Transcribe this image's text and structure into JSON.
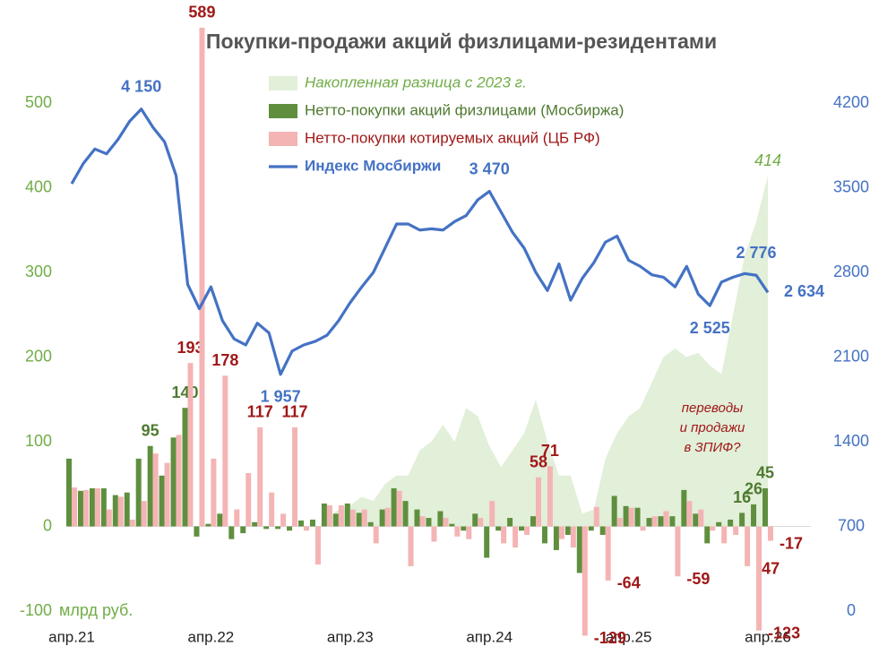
{
  "chart_data": {
    "type": "combo",
    "title": "Покупки-продажи акций физлицами-резидентами",
    "unit_label": "млрд руб.",
    "categories": [
      "апр.21",
      null,
      null,
      null,
      null,
      null,
      null,
      null,
      null,
      null,
      null,
      null,
      "апр.22",
      null,
      null,
      null,
      null,
      null,
      null,
      null,
      null,
      null,
      null,
      null,
      "апр.23",
      null,
      null,
      null,
      null,
      null,
      null,
      null,
      null,
      null,
      null,
      null,
      "апр.24",
      null,
      null,
      null,
      null,
      null,
      null,
      null,
      null,
      null,
      null,
      null,
      "апр.25",
      null,
      null,
      null,
      null,
      null,
      null,
      null,
      null,
      null,
      null,
      null,
      "апр.26"
    ],
    "ylim": [
      -100,
      500
    ],
    "yticks": [
      -100,
      0,
      100,
      200,
      300,
      400,
      500
    ],
    "ytick_color": "#70ad47",
    "y2lim": [
      0,
      4200
    ],
    "y2ticks": [
      0,
      700,
      1400,
      2100,
      2800,
      3500,
      4200
    ],
    "y2tick_color": "#4472c4",
    "series": [
      {
        "name": "Накопленная разница с 2023 г.",
        "type": "area",
        "color": "#e2efd9",
        "text_color": "#70ad47",
        "values": [
          null,
          null,
          null,
          null,
          null,
          null,
          null,
          null,
          null,
          null,
          null,
          null,
          null,
          null,
          null,
          null,
          null,
          null,
          null,
          null,
          null,
          -15,
          10,
          20,
          25,
          35,
          30,
          50,
          60,
          60,
          90,
          100,
          120,
          100,
          140,
          130,
          95,
          70,
          90,
          110,
          150,
          100,
          60,
          60,
          15,
          20,
          80,
          110,
          130,
          140,
          170,
          200,
          210,
          200,
          205,
          190,
          180,
          250,
          320,
          360,
          414
        ],
        "value_labels": [
          null,
          null,
          null,
          null,
          null,
          null,
          null,
          null,
          null,
          null,
          null,
          null,
          null,
          null,
          null,
          null,
          null,
          null,
          null,
          null,
          null,
          null,
          null,
          null,
          null,
          null,
          null,
          null,
          null,
          null,
          null,
          null,
          null,
          null,
          null,
          null,
          null,
          null,
          null,
          null,
          null,
          null,
          null,
          null,
          null,
          null,
          null,
          null,
          null,
          null,
          null,
          null,
          null,
          null,
          null,
          null,
          null,
          null,
          null,
          null,
          "414"
        ]
      },
      {
        "name": "Нетто-покупки акций физлицами (Мосбиржа)",
        "type": "bar",
        "color": "#5f8f3e",
        "text_color": "#4e7a2f",
        "values": [
          80,
          42,
          45,
          45,
          37,
          40,
          80,
          95,
          60,
          105,
          140,
          -12,
          3,
          15,
          -15,
          -8,
          5,
          -3,
          -3,
          -5,
          7,
          8,
          27,
          15,
          27,
          16,
          5,
          20,
          45,
          30,
          20,
          10,
          18,
          3,
          -5,
          15,
          -37,
          -5,
          10,
          -5,
          12,
          -20,
          -28,
          -10,
          -55,
          -5,
          -10,
          36,
          24,
          22,
          10,
          12,
          12,
          43,
          15,
          -20,
          5,
          8,
          16,
          26,
          45
        ],
        "value_labels": [
          null,
          null,
          null,
          null,
          null,
          null,
          null,
          "95",
          null,
          null,
          "140",
          null,
          null,
          null,
          null,
          null,
          null,
          null,
          null,
          null,
          null,
          null,
          null,
          null,
          null,
          null,
          null,
          null,
          null,
          null,
          null,
          null,
          null,
          null,
          null,
          null,
          null,
          null,
          null,
          null,
          null,
          null,
          null,
          null,
          null,
          null,
          null,
          null,
          null,
          null,
          null,
          null,
          null,
          null,
          null,
          null,
          null,
          null,
          "16",
          "26",
          "45"
        ]
      },
      {
        "name": "Нетто-покупки котируемых акций (ЦБ РФ)",
        "type": "bar",
        "color": "#f4b4b4",
        "text_color": "#a01818",
        "values": [
          46,
          43,
          45,
          20,
          35,
          8,
          30,
          86,
          75,
          108,
          193,
          589,
          80,
          178,
          20,
          63,
          117,
          40,
          15,
          117,
          -5,
          -45,
          25,
          25,
          20,
          20,
          -20,
          22,
          42,
          -47,
          12,
          -18,
          10,
          -12,
          -15,
          10,
          30,
          -20,
          -25,
          -10,
          58,
          71,
          -15,
          -25,
          -129,
          23,
          -64,
          10,
          22,
          -5,
          12,
          18,
          -59,
          30,
          20,
          -5,
          -20,
          -10,
          -47,
          -123,
          -17
        ],
        "value_labels": [
          null,
          null,
          null,
          null,
          null,
          null,
          null,
          null,
          null,
          null,
          "193",
          "589",
          null,
          "178",
          null,
          null,
          "117",
          null,
          null,
          "117",
          null,
          null,
          null,
          null,
          null,
          null,
          null,
          null,
          null,
          null,
          null,
          null,
          null,
          null,
          null,
          null,
          null,
          null,
          null,
          null,
          "58",
          "71",
          null,
          null,
          "-129",
          null,
          "-64",
          null,
          null,
          null,
          null,
          null,
          "-59",
          null,
          null,
          null,
          null,
          null,
          "-47",
          "-123",
          "-17"
        ]
      },
      {
        "name": "Индекс Мосбиржи",
        "type": "line",
        "axis": "y2",
        "color": "#4472c4",
        "text_color": "#4472c4",
        "values": [
          3533,
          3700,
          3820,
          3780,
          3900,
          4050,
          4150,
          4000,
          3880,
          3600,
          2700,
          2500,
          2680,
          2400,
          2250,
          2200,
          2380,
          2300,
          1957,
          2150,
          2200,
          2230,
          2280,
          2400,
          2550,
          2680,
          2800,
          3000,
          3200,
          3200,
          3150,
          3160,
          3150,
          3220,
          3270,
          3400,
          3470,
          3300,
          3130,
          3000,
          2800,
          2650,
          2870,
          2570,
          2750,
          2880,
          3050,
          3100,
          2900,
          2850,
          2780,
          2760,
          2680,
          2850,
          2620,
          2525,
          2720,
          2760,
          2790,
          2776,
          2634
        ],
        "value_labels": [
          null,
          null,
          null,
          null,
          null,
          null,
          "4 150",
          null,
          null,
          null,
          null,
          null,
          null,
          null,
          null,
          null,
          null,
          null,
          "1 957",
          null,
          null,
          null,
          null,
          null,
          null,
          null,
          null,
          null,
          null,
          null,
          null,
          null,
          null,
          null,
          null,
          null,
          "3 470",
          null,
          null,
          null,
          null,
          null,
          null,
          null,
          null,
          null,
          null,
          null,
          null,
          null,
          null,
          null,
          null,
          null,
          null,
          "2 525",
          null,
          null,
          null,
          "2 776",
          "2 634"
        ]
      }
    ],
    "annotation": [
      "переводы",
      "и продажи",
      "в ЗПИФ?"
    ],
    "annotation_color": "#a01818"
  }
}
